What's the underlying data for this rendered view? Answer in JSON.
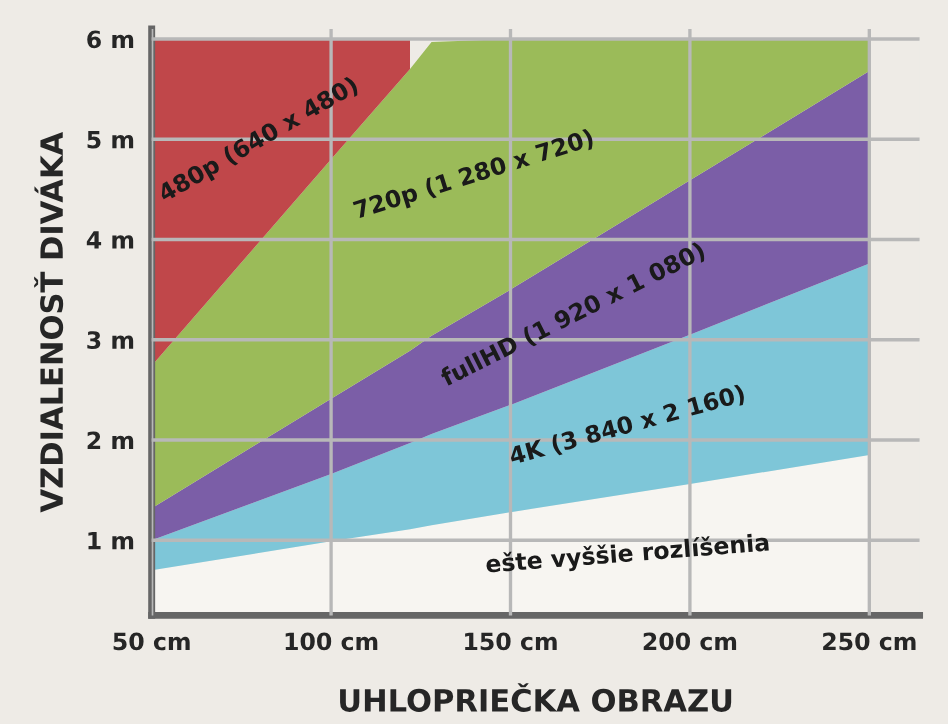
{
  "chart_data": {
    "type": "area",
    "stacked": true,
    "xlabel": "UHLOPRIEČKA OBRAZU",
    "ylabel": "VZDIALENOSŤ DIVÁKA",
    "x": [
      50,
      100,
      122,
      128,
      150,
      200,
      250
    ],
    "series": [
      {
        "name": "ešte vyššie rozlíšenia",
        "color": "#f7f5f1",
        "values": [
          0.7,
          0.99,
          1.11,
          1.15,
          1.28,
          1.56,
          1.85
        ]
      },
      {
        "name": "4K (3 840 x 2 160)",
        "color": "#7ec6d8",
        "values": [
          0.3,
          0.67,
          0.86,
          0.91,
          1.07,
          1.49,
          1.91
        ]
      },
      {
        "name": "fullHD (1 920 x 1 080)",
        "color": "#7b5ea7",
        "values": [
          0.32,
          0.75,
          0.92,
          0.98,
          1.15,
          1.54,
          1.92
        ]
      },
      {
        "name": "720p (1 280 x 720)",
        "color": "#9bbb59",
        "values": [
          1.42,
          2.39,
          2.81,
          2.93,
          2.5,
          1.41,
          0.32
        ]
      },
      {
        "name": "480p (640 x 480)",
        "color": "#c0474a",
        "values": [
          3.26,
          1.2,
          0.3,
          null,
          null,
          null,
          null
        ]
      }
    ],
    "xlim": [
      50,
      264
    ],
    "ylim": [
      0.25,
      6.1
    ],
    "xticks": [
      {
        "value": 50,
        "label": "50 cm"
      },
      {
        "value": 100,
        "label": "100 cm"
      },
      {
        "value": 150,
        "label": "150 cm"
      },
      {
        "value": 200,
        "label": "200 cm"
      },
      {
        "value": 250,
        "label": "250 cm"
      }
    ],
    "yticks": [
      {
        "value": 1,
        "label": "1 m"
      },
      {
        "value": 2,
        "label": "2 m"
      },
      {
        "value": 3,
        "label": "3 m"
      },
      {
        "value": 4,
        "label": "4 m"
      },
      {
        "value": 5,
        "label": "5 m"
      },
      {
        "value": 6,
        "label": "6 m"
      }
    ],
    "grid": true,
    "legend": false
  }
}
